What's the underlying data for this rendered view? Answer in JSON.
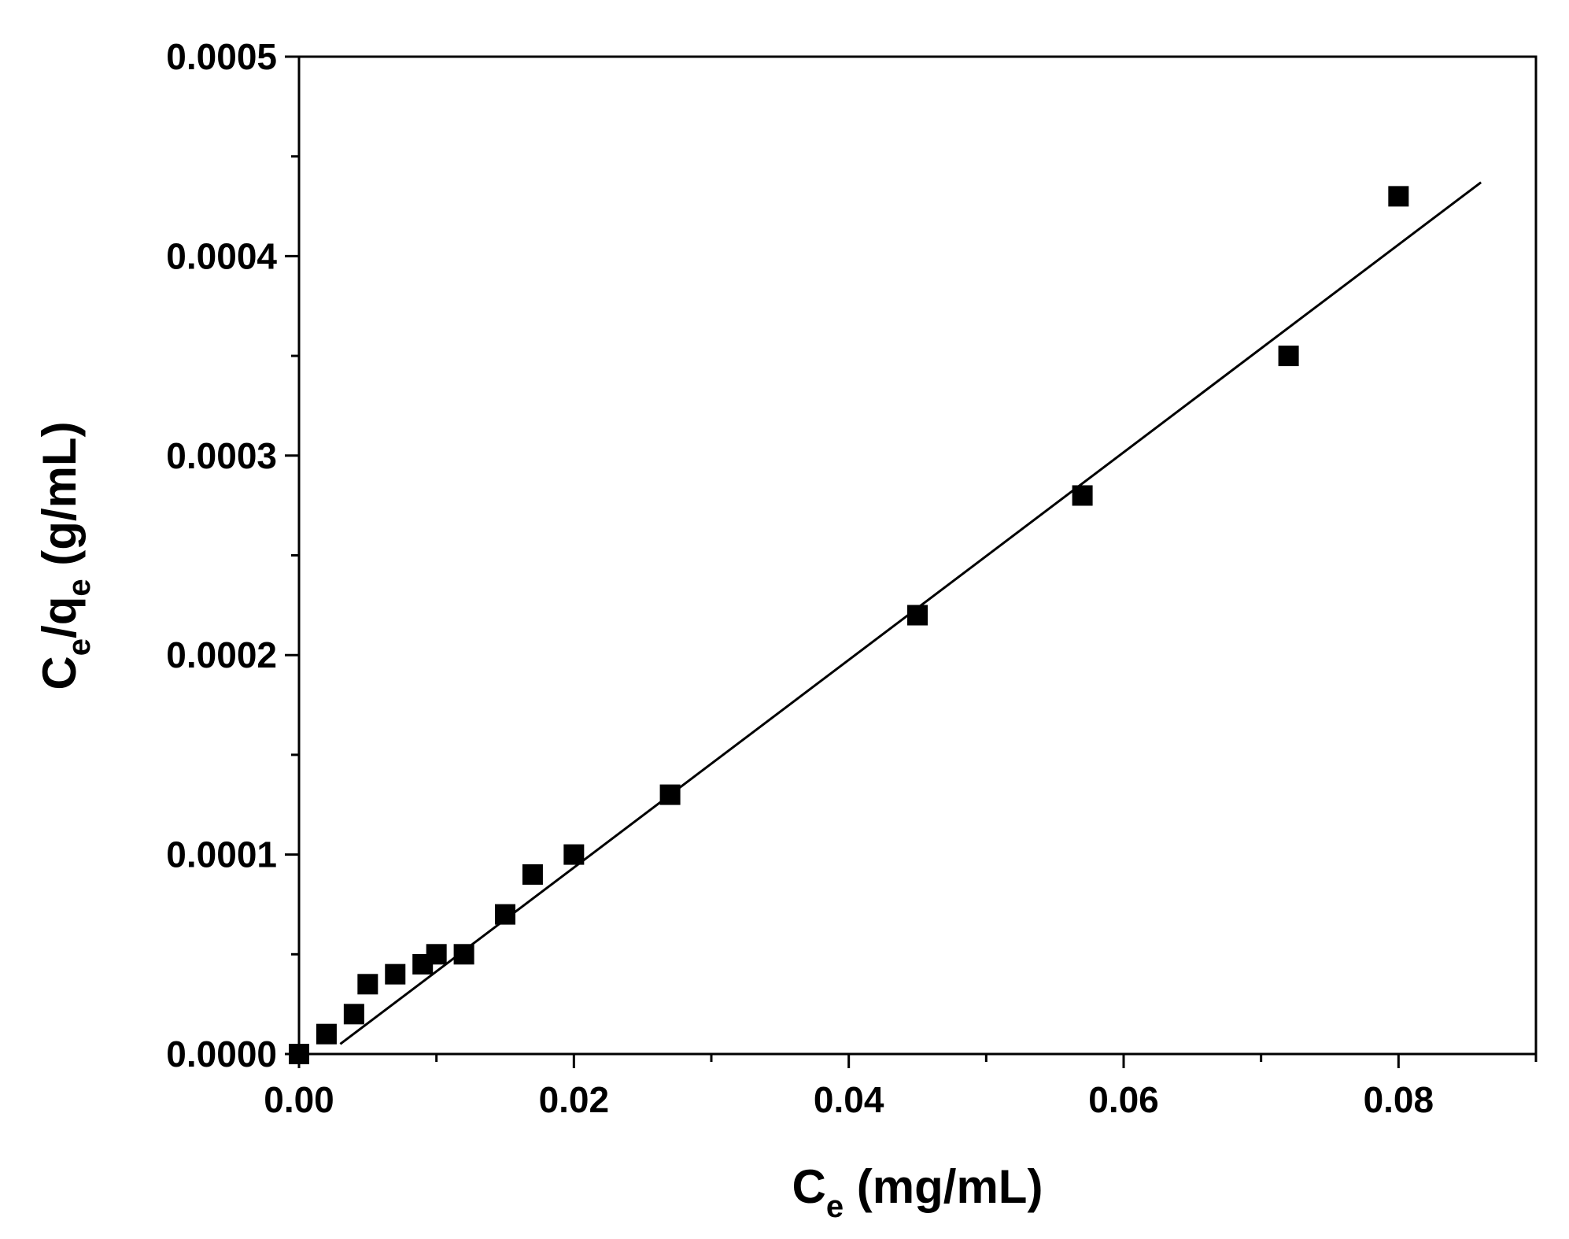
{
  "chart_data": {
    "type": "scatter",
    "xlabel": {
      "main": "C",
      "sub": "e",
      "rest": " (mg/mL)"
    },
    "ylabel": {
      "c": "C",
      "c_sub": "e",
      "slash": "/q",
      "q_sub": "e",
      "rest": " (g/mL)"
    },
    "xlim": [
      0,
      0.09
    ],
    "ylim": [
      0,
      0.0005
    ],
    "x_ticks": [
      0,
      0.02,
      0.04,
      0.06,
      0.08
    ],
    "x_tick_labels": [
      "0.00",
      "0.02",
      "0.04",
      "0.06",
      "0.08"
    ],
    "x_minor_ticks": [
      0.01,
      0.03,
      0.05,
      0.07,
      0.09
    ],
    "y_ticks": [
      0,
      0.0001,
      0.0002,
      0.0003,
      0.0004,
      0.0005
    ],
    "y_tick_labels": [
      "0.0000",
      "0.0001",
      "0.0002",
      "0.0003",
      "0.0004",
      "0.0005"
    ],
    "y_minor_ticks": [
      5e-05,
      0.00015,
      0.00025,
      0.00035,
      0.00045
    ],
    "grid": false,
    "series": [
      {
        "marker": "square",
        "color": "#000000",
        "points": [
          {
            "x": 0.0,
            "y": 0.0
          },
          {
            "x": 0.002,
            "y": 1e-05
          },
          {
            "x": 0.004,
            "y": 2e-05
          },
          {
            "x": 0.005,
            "y": 3.5e-05
          },
          {
            "x": 0.007,
            "y": 4e-05
          },
          {
            "x": 0.009,
            "y": 4.5e-05
          },
          {
            "x": 0.01,
            "y": 5e-05
          },
          {
            "x": 0.012,
            "y": 5e-05
          },
          {
            "x": 0.015,
            "y": 7e-05
          },
          {
            "x": 0.017,
            "y": 9e-05
          },
          {
            "x": 0.02,
            "y": 0.0001
          },
          {
            "x": 0.027,
            "y": 0.00013
          },
          {
            "x": 0.045,
            "y": 0.00022
          },
          {
            "x": 0.057,
            "y": 0.00028
          },
          {
            "x": 0.072,
            "y": 0.00035
          },
          {
            "x": 0.08,
            "y": 0.00043
          }
        ]
      }
    ],
    "fit_line": {
      "color": "#000000",
      "from": {
        "x": 0.003,
        "y": 5e-06
      },
      "to": {
        "x": 0.086,
        "y": 0.000437
      }
    }
  }
}
